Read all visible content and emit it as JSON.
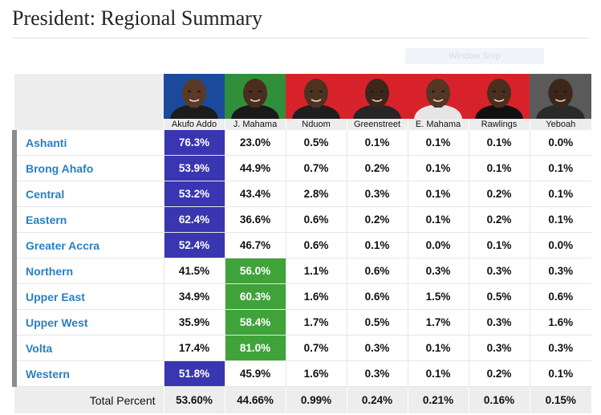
{
  "page": {
    "title": "President: Regional Summary",
    "watermark": "Window Snip"
  },
  "candidates": [
    {
      "name": "Akufo Addo",
      "bg": "#1b4a9c",
      "skin": "#5a3a26",
      "suit": "#1c1c1c"
    },
    {
      "name": "J. Mahama",
      "bg": "#2f8f3a",
      "skin": "#4a2d1d",
      "suit": "#1a1a1a"
    },
    {
      "name": "Nduom",
      "bg": "#d8222b",
      "skin": "#4e3221",
      "suit": "#1f1f1f"
    },
    {
      "name": "Greenstreet",
      "bg": "#d8222b",
      "skin": "#3d271a",
      "suit": "#262626"
    },
    {
      "name": "E. Mahama",
      "bg": "#d8222b",
      "skin": "#553624",
      "suit": "#e6e6e6"
    },
    {
      "name": "Rawlings",
      "bg": "#d8222b",
      "skin": "#4a2e1e",
      "suit": "#111111"
    },
    {
      "name": "Yeboah",
      "bg": "#5a5a5a",
      "skin": "#3c271a",
      "suit": "#2a2a2a"
    }
  ],
  "colors": {
    "akufo_win": "#3a35b0",
    "mahama_win": "#3fa33a",
    "region_link": "#2a7fc0"
  },
  "regions": [
    {
      "name": "Ashanti",
      "winner": 0,
      "values": [
        "76.3%",
        "23.0%",
        "0.5%",
        "0.1%",
        "0.1%",
        "0.1%",
        "0.0%"
      ]
    },
    {
      "name": "Brong Ahafo",
      "winner": 0,
      "values": [
        "53.9%",
        "44.9%",
        "0.7%",
        "0.2%",
        "0.1%",
        "0.1%",
        "0.1%"
      ]
    },
    {
      "name": "Central",
      "winner": 0,
      "values": [
        "53.2%",
        "43.4%",
        "2.8%",
        "0.3%",
        "0.1%",
        "0.2%",
        "0.1%"
      ]
    },
    {
      "name": "Eastern",
      "winner": 0,
      "values": [
        "62.4%",
        "36.6%",
        "0.6%",
        "0.2%",
        "0.1%",
        "0.2%",
        "0.1%"
      ]
    },
    {
      "name": "Greater Accra",
      "winner": 0,
      "values": [
        "52.4%",
        "46.7%",
        "0.6%",
        "0.1%",
        "0.0%",
        "0.1%",
        "0.0%"
      ]
    },
    {
      "name": "Northern",
      "winner": 1,
      "values": [
        "41.5%",
        "56.0%",
        "1.1%",
        "0.6%",
        "0.3%",
        "0.3%",
        "0.3%"
      ]
    },
    {
      "name": "Upper East",
      "winner": 1,
      "values": [
        "34.9%",
        "60.3%",
        "1.6%",
        "0.6%",
        "1.5%",
        "0.5%",
        "0.6%"
      ]
    },
    {
      "name": "Upper West",
      "winner": 1,
      "values": [
        "35.9%",
        "58.4%",
        "1.7%",
        "0.5%",
        "1.7%",
        "0.3%",
        "1.6%"
      ]
    },
    {
      "name": "Volta",
      "winner": 1,
      "values": [
        "17.4%",
        "81.0%",
        "0.7%",
        "0.3%",
        "0.1%",
        "0.3%",
        "0.3%"
      ]
    },
    {
      "name": "Western",
      "winner": 0,
      "values": [
        "51.8%",
        "45.9%",
        "1.6%",
        "0.3%",
        "0.1%",
        "0.2%",
        "0.1%"
      ]
    }
  ],
  "total": {
    "label": "Total Percent",
    "values": [
      "53.60%",
      "44.66%",
      "0.99%",
      "0.24%",
      "0.21%",
      "0.16%",
      "0.15%"
    ]
  }
}
